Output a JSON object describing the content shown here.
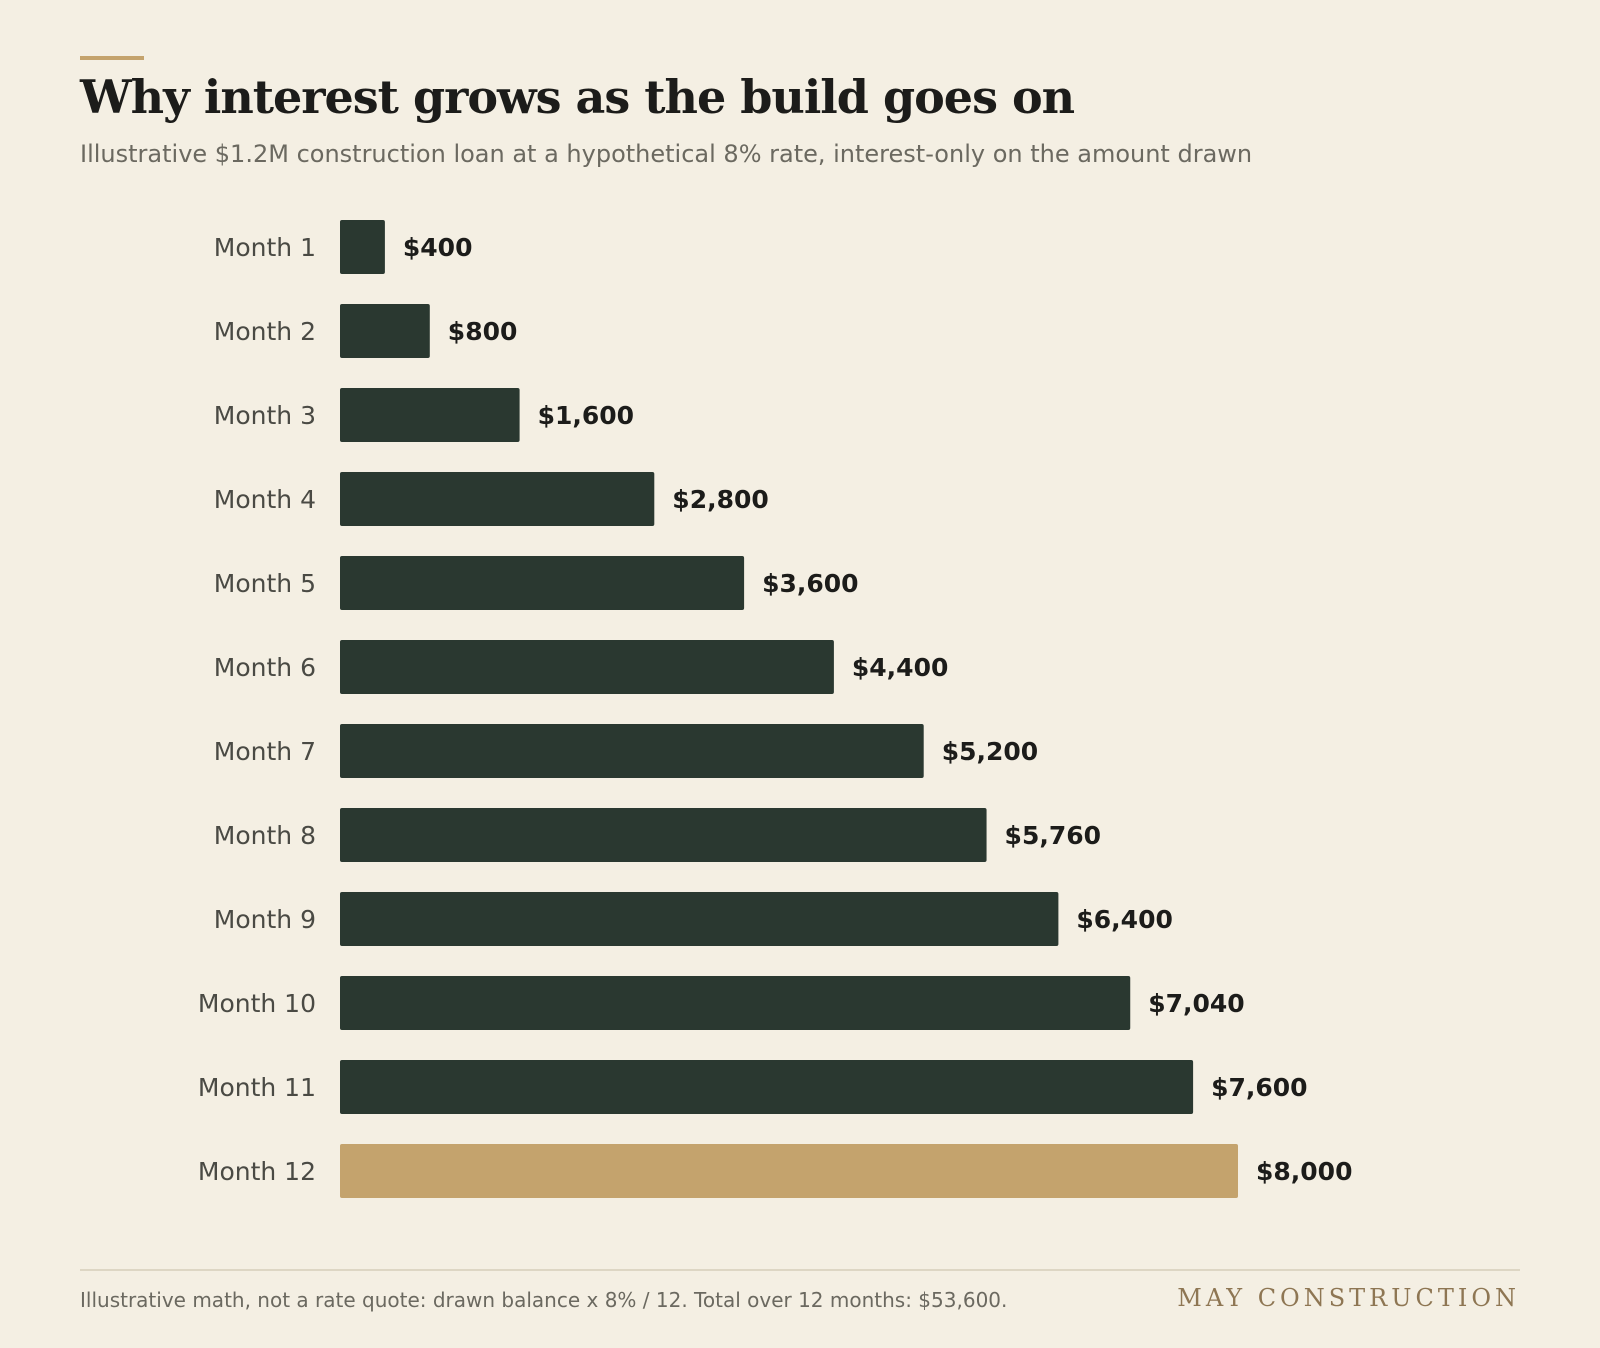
{
  "header": {
    "title": "Why interest grows as the build goes on",
    "subtitle": "Illustrative $1.2M construction loan at a hypothetical 8% rate, interest-only on the amount drawn"
  },
  "chart_data": {
    "type": "bar",
    "orientation": "horizontal",
    "categories": [
      "Month 1",
      "Month 2",
      "Month 3",
      "Month 4",
      "Month 5",
      "Month 6",
      "Month 7",
      "Month 8",
      "Month 9",
      "Month 10",
      "Month 11",
      "Month 12"
    ],
    "values": [
      400,
      800,
      1600,
      2800,
      3600,
      4400,
      5200,
      5760,
      6400,
      7040,
      7600,
      8000
    ],
    "value_labels": [
      "$400",
      "$800",
      "$1,600",
      "$2,800",
      "$3,600",
      "$4,400",
      "$5,200",
      "$5,760",
      "$6,400",
      "$7,040",
      "$7,600",
      "$8,000"
    ],
    "title": "Why interest grows as the build goes on",
    "xlabel": "",
    "ylabel": "",
    "xlim": [
      0,
      8000
    ],
    "grid": false,
    "legend": "none",
    "highlight_index": 11,
    "colors": {
      "bar": "#2a3830",
      "highlight": "#c4a36d"
    }
  },
  "footer": {
    "note": "Illustrative math, not a rate quote: drawn balance x 8% / 12. Total over 12 months: $53,600.",
    "brand": "MAY CONSTRUCTION"
  }
}
